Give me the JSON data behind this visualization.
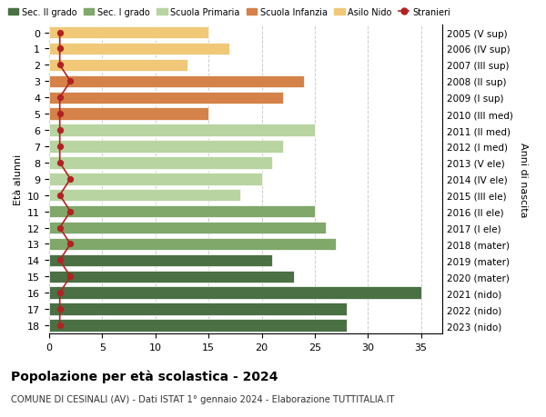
{
  "ages": [
    18,
    17,
    16,
    15,
    14,
    13,
    12,
    11,
    10,
    9,
    8,
    7,
    6,
    5,
    4,
    3,
    2,
    1,
    0
  ],
  "years": [
    "2005 (V sup)",
    "2006 (IV sup)",
    "2007 (III sup)",
    "2008 (II sup)",
    "2009 (I sup)",
    "2010 (III med)",
    "2011 (II med)",
    "2012 (I med)",
    "2013 (V ele)",
    "2014 (IV ele)",
    "2015 (III ele)",
    "2016 (II ele)",
    "2017 (I ele)",
    "2018 (mater)",
    "2019 (mater)",
    "2020 (mater)",
    "2021 (nido)",
    "2022 (nido)",
    "2023 (nido)"
  ],
  "bar_values": [
    28,
    28,
    35,
    23,
    21,
    27,
    26,
    25,
    18,
    20,
    21,
    22,
    25,
    15,
    22,
    24,
    13,
    17,
    15
  ],
  "bar_colors": [
    "#4a7043",
    "#4a7043",
    "#4a7043",
    "#4a7043",
    "#4a7043",
    "#7fa86a",
    "#7fa86a",
    "#7fa86a",
    "#b8d4a0",
    "#b8d4a0",
    "#b8d4a0",
    "#b8d4a0",
    "#b8d4a0",
    "#d4824a",
    "#d4824a",
    "#d4824a",
    "#f0c878",
    "#f0c878",
    "#f0c878"
  ],
  "stranieri_values": [
    1,
    1,
    1,
    2,
    1,
    2,
    1,
    2,
    1,
    2,
    1,
    1,
    1,
    1,
    1,
    2,
    1,
    1,
    1
  ],
  "stranieri_color": "#b22222",
  "legend_labels": [
    "Sec. II grado",
    "Sec. I grado",
    "Scuola Primaria",
    "Scuola Infanzia",
    "Asilo Nido",
    "Stranieri"
  ],
  "legend_colors": [
    "#4a7043",
    "#7fa86a",
    "#b8d4a0",
    "#d4824a",
    "#f0c878",
    "#b22222"
  ],
  "ylabel_left": "Età alunni",
  "ylabel_right": "Anni di nascita",
  "title": "Popolazione per età scolastica - 2024",
  "subtitle": "COMUNE DI CESINALI (AV) - Dati ISTAT 1° gennaio 2024 - Elaborazione TUTTITALIA.IT",
  "xlim": [
    0,
    37
  ],
  "xticks": [
    0,
    5,
    10,
    15,
    20,
    25,
    30,
    35
  ],
  "bg_color": "#ffffff",
  "grid_color": "#cccccc"
}
